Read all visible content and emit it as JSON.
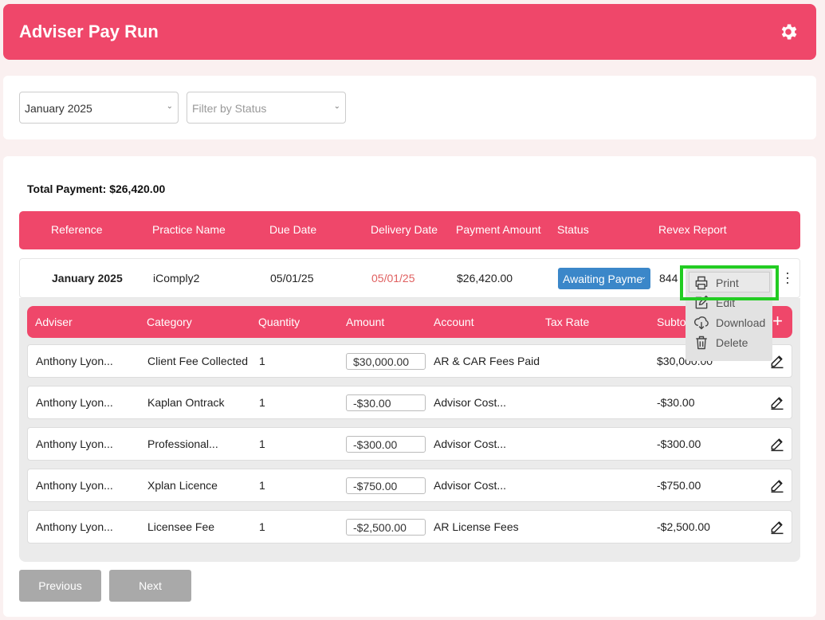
{
  "header": {
    "title": "Adviser Pay Run",
    "icon": "gear-icon"
  },
  "filters": {
    "month": {
      "value": "January 2025"
    },
    "status": {
      "placeholder": "Filter by Status"
    }
  },
  "summary": {
    "total": "Total Payment: $26,420.00"
  },
  "table": {
    "columns": [
      "Reference",
      "Practice Name",
      "Due Date",
      "Delivery Date",
      "Payment Amount",
      "Status",
      "Revex Report"
    ],
    "row": {
      "reference": "January 2025",
      "practice": "iComply2",
      "due": "05/01/25",
      "delivery": "05/01/25",
      "amount": "$26,420.00",
      "status": "Awaiting Payme",
      "revex": "844"
    }
  },
  "context_menu": {
    "items": [
      {
        "label": "Print",
        "icon": "printer-icon"
      },
      {
        "label": "Edit",
        "icon": "edit-icon"
      },
      {
        "label": "Download",
        "icon": "download-icon"
      },
      {
        "label": "Delete",
        "icon": "trash-icon"
      }
    ]
  },
  "lines": {
    "columns": [
      "Adviser",
      "Category",
      "Quantity",
      "Amount",
      "Account",
      "Tax Rate",
      "Subtot"
    ],
    "add_label": "+",
    "rows": [
      {
        "adviser": "Anthony Lyon...",
        "category": "Client Fee Collected",
        "qty": "1",
        "amount": "$30,000.00",
        "account": "AR & CAR Fees Paid",
        "subtotal": "$30,000.00"
      },
      {
        "adviser": "Anthony Lyon...",
        "category": "Kaplan Ontrack",
        "qty": "1",
        "amount": "-$30.00",
        "account": "Advisor Cost...",
        "subtotal": "-$30.00"
      },
      {
        "adviser": "Anthony Lyon...",
        "category": "Professional...",
        "qty": "1",
        "amount": "-$300.00",
        "account": "Advisor Cost...",
        "subtotal": "-$300.00"
      },
      {
        "adviser": "Anthony Lyon...",
        "category": "Xplan Licence",
        "qty": "1",
        "amount": "-$750.00",
        "account": "Advisor Cost...",
        "subtotal": "-$750.00"
      },
      {
        "adviser": "Anthony Lyon...",
        "category": "Licensee Fee",
        "qty": "1",
        "amount": "-$2,500.00",
        "account": "AR License Fees",
        "subtotal": "-$2,500.00"
      }
    ]
  },
  "pagination": {
    "previous": "Previous",
    "next": "Next"
  },
  "colors": {
    "accent": "#ef476a",
    "status_blue": "#3b87c9",
    "highlight": "#22cc22"
  }
}
